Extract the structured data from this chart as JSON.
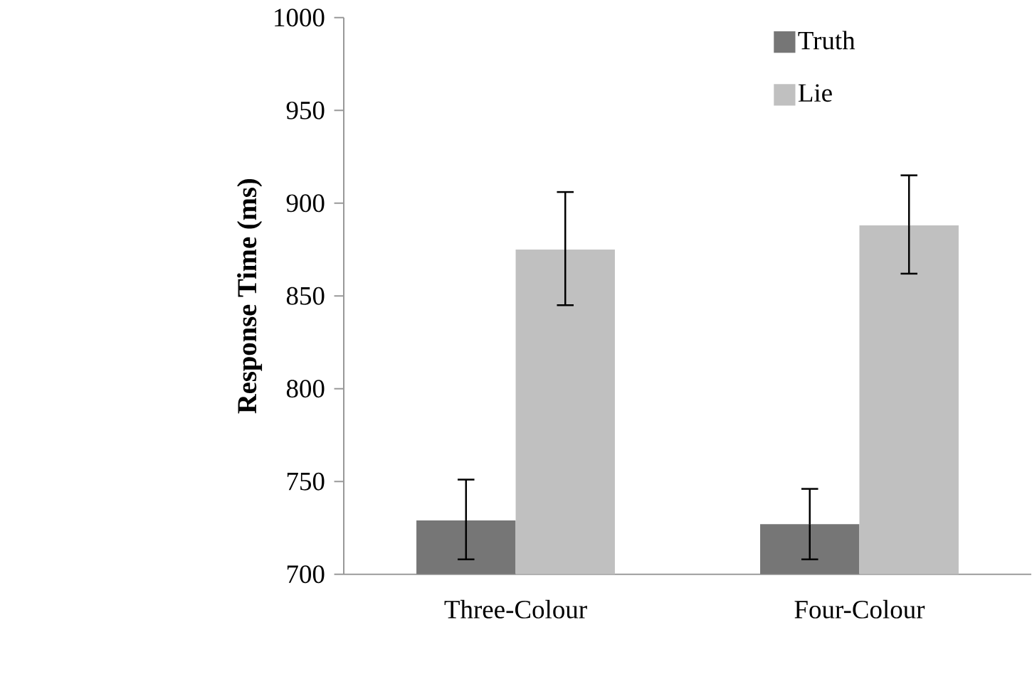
{
  "chart_data": {
    "type": "bar",
    "ylabel": "Response Time (ms)",
    "categories": [
      "Three-Colour",
      "Four-Colour"
    ],
    "series": [
      {
        "name": "Truth",
        "color": "#767676",
        "values": [
          729,
          727
        ],
        "errors": [
          [
            708,
            751
          ],
          [
            708,
            746
          ]
        ]
      },
      {
        "name": "Lie",
        "color": "#c0c0c0",
        "values": [
          875,
          888
        ],
        "errors": [
          [
            845,
            906
          ],
          [
            862,
            915
          ]
        ]
      }
    ],
    "ylim": [
      700,
      1000
    ],
    "yticks": [
      700,
      750,
      800,
      850,
      900,
      950,
      1000
    ],
    "legend": "top right"
  }
}
